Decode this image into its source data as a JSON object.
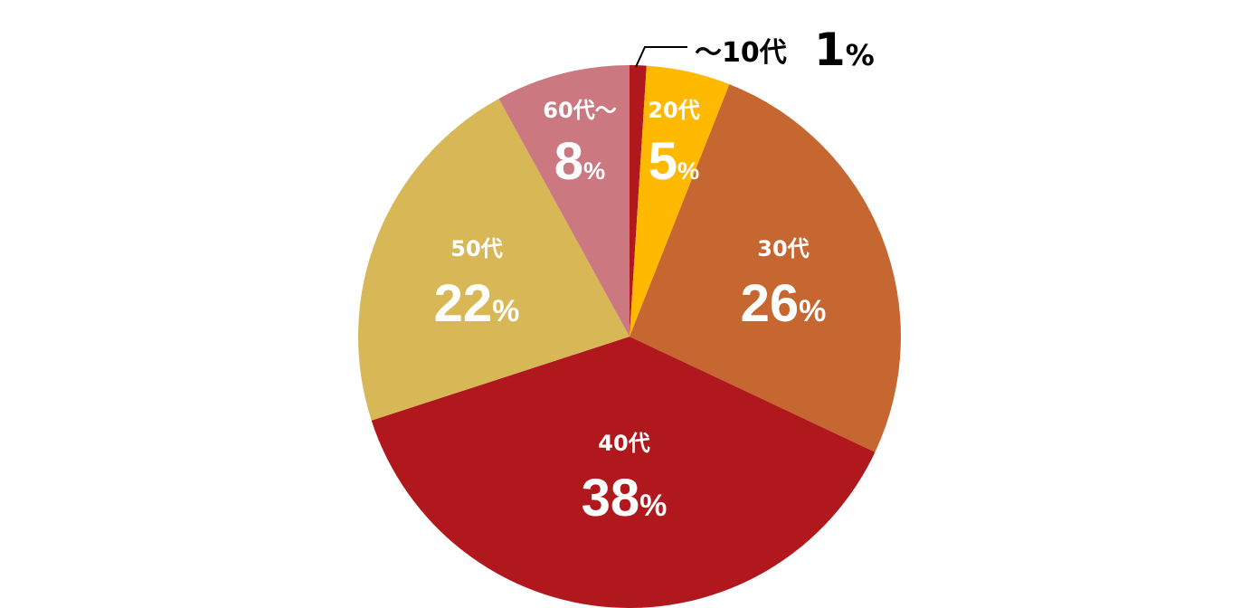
{
  "chart_data": {
    "type": "pie",
    "start": "top",
    "direction": "clockwise",
    "unit": "%",
    "slices": [
      {
        "label": "～10代",
        "value": 1,
        "color": "#b0181d",
        "label_placement": "outside"
      },
      {
        "label": "20代",
        "value": 5,
        "color": "#ffb900"
      },
      {
        "label": "30代",
        "value": 26,
        "color": "#c66630"
      },
      {
        "label": "40代",
        "value": 38,
        "color": "#b0181d"
      },
      {
        "label": "50代",
        "value": 22,
        "color": "#d8b856"
      },
      {
        "label": "60代～",
        "value": 8,
        "color": "#cc7880"
      }
    ]
  }
}
